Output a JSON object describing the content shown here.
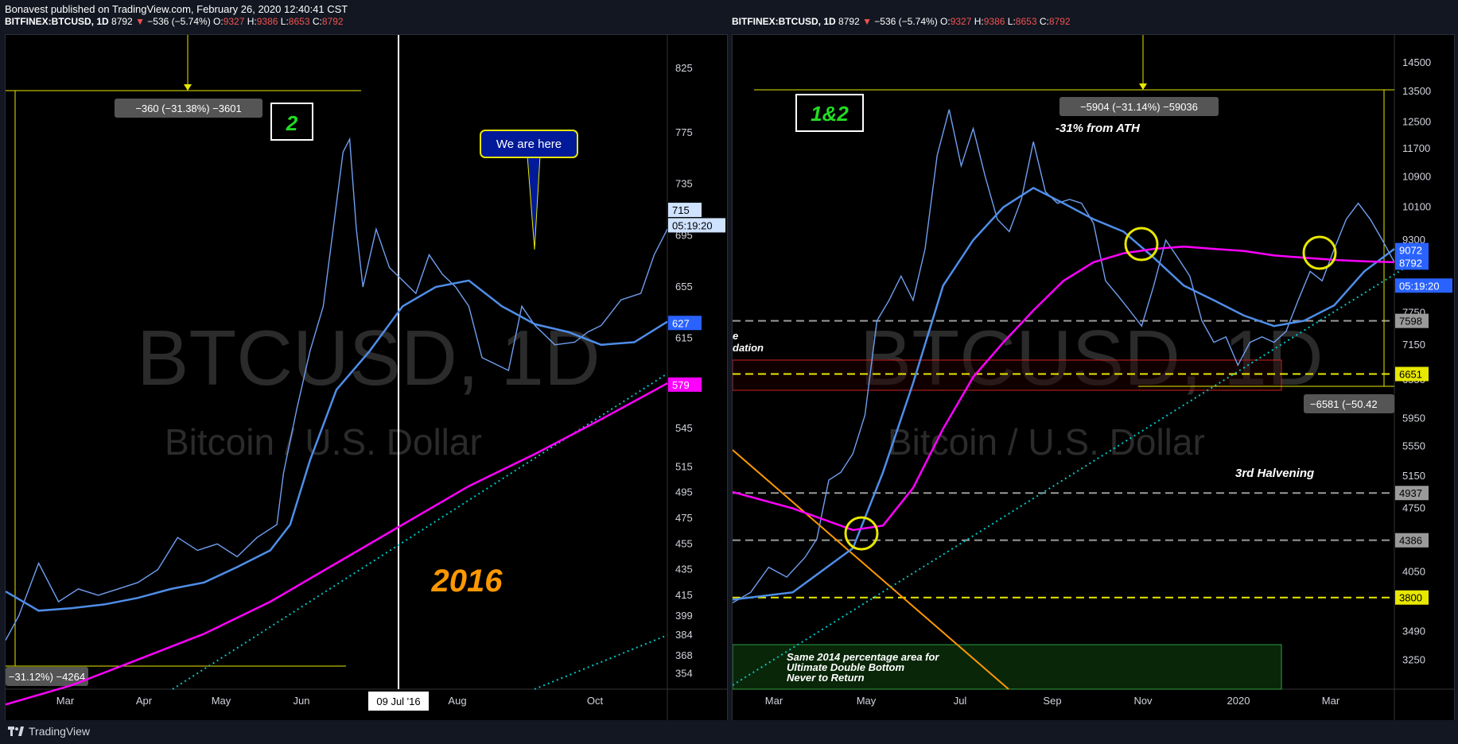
{
  "header": {
    "publisher_line": "Bonavest published on TradingView.com, February 26, 2020 12:40:41 CST"
  },
  "footer": {
    "brand": "TradingView"
  },
  "colors": {
    "sma_blue": "#4f8ee8",
    "ma_magenta": "#ff00ff",
    "yellow": "#e8e800",
    "cyan_dotted": "#00c8c8",
    "orange_line": "#ff9800",
    "price_line": "#6f9ff0",
    "red_zone": "#cc2222",
    "green_zone": "#2ea043"
  },
  "chart_data": [
    {
      "type": "line",
      "id": "left",
      "title": "BITFINEX:BTCUSD, 1D",
      "ohlc": {
        "last": "8792",
        "change": "−536 (−5.74%)",
        "O": "9327",
        "H": "9386",
        "L": "8653",
        "C": "8792"
      },
      "watermark": "BTCUSD, 1D",
      "watermark_sub": "Bitcoin / U.S. Dollar",
      "ylim": [
        350,
        840
      ],
      "x_labels": [
        "Mar",
        "Apr",
        "May",
        "Jun",
        "Aug",
        "Oct"
      ],
      "y_ticks": [
        "825",
        "775",
        "735",
        "695",
        "655",
        "615",
        "579",
        "545",
        "515",
        "495",
        "475",
        "455",
        "435",
        "415",
        "399",
        "384",
        "368",
        "354"
      ],
      "price_labels": [
        {
          "text": "715",
          "value": 715,
          "kind": "light"
        },
        {
          "text": "05:19:20",
          "value": 703,
          "kind": "light"
        },
        {
          "text": "627",
          "value": 627,
          "kind": "blue"
        },
        {
          "text": "579",
          "value": 579,
          "kind": "magenta"
        }
      ],
      "annotations": {
        "measure_top": "−360 (−31.38%) −3601",
        "measure_bottom": "−31.12%) −4264",
        "box_label": "2",
        "callout": "We are here",
        "year": "2016",
        "date_marker": "09 Jul '16"
      },
      "series": [
        {
          "name": "Price",
          "points": [
            [
              0,
              380
            ],
            [
              0.02,
              399
            ],
            [
              0.05,
              440
            ],
            [
              0.08,
              410
            ],
            [
              0.11,
              420
            ],
            [
              0.14,
              415
            ],
            [
              0.17,
              420
            ],
            [
              0.2,
              425
            ],
            [
              0.23,
              435
            ],
            [
              0.26,
              460
            ],
            [
              0.29,
              450
            ],
            [
              0.32,
              455
            ],
            [
              0.35,
              445
            ],
            [
              0.38,
              460
            ],
            [
              0.41,
              470
            ],
            [
              0.42,
              510
            ],
            [
              0.44,
              560
            ],
            [
              0.46,
              605
            ],
            [
              0.48,
              640
            ],
            [
              0.5,
              720
            ],
            [
              0.51,
              760
            ],
            [
              0.52,
              770
            ],
            [
              0.53,
              700
            ],
            [
              0.54,
              655
            ],
            [
              0.56,
              700
            ],
            [
              0.58,
              670
            ],
            [
              0.6,
              660
            ],
            [
              0.62,
              650
            ],
            [
              0.64,
              680
            ],
            [
              0.66,
              665
            ],
            [
              0.68,
              655
            ],
            [
              0.7,
              640
            ],
            [
              0.72,
              600
            ],
            [
              0.74,
              595
            ],
            [
              0.76,
              590
            ],
            [
              0.78,
              640
            ],
            [
              0.8,
              625
            ],
            [
              0.83,
              610
            ],
            [
              0.86,
              612
            ],
            [
              0.88,
              620
            ],
            [
              0.9,
              625
            ],
            [
              0.93,
              645
            ],
            [
              0.96,
              650
            ],
            [
              0.98,
              680
            ],
            [
              1.0,
              700
            ]
          ]
        },
        {
          "name": "SMA",
          "points": [
            [
              0,
              418
            ],
            [
              0.05,
              403
            ],
            [
              0.1,
              405
            ],
            [
              0.15,
              408
            ],
            [
              0.2,
              413
            ],
            [
              0.25,
              420
            ],
            [
              0.3,
              425
            ],
            [
              0.35,
              437
            ],
            [
              0.4,
              450
            ],
            [
              0.43,
              470
            ],
            [
              0.46,
              520
            ],
            [
              0.5,
              575
            ],
            [
              0.55,
              605
            ],
            [
              0.6,
              640
            ],
            [
              0.65,
              655
            ],
            [
              0.7,
              660
            ],
            [
              0.75,
              640
            ],
            [
              0.8,
              626
            ],
            [
              0.85,
              620
            ],
            [
              0.9,
              610
            ],
            [
              0.95,
              612
            ],
            [
              1.0,
              628
            ]
          ]
        },
        {
          "name": "MA200",
          "points": [
            [
              0,
              330
            ],
            [
              0.1,
              345
            ],
            [
              0.2,
              365
            ],
            [
              0.3,
              385
            ],
            [
              0.4,
              410
            ],
            [
              0.5,
              440
            ],
            [
              0.6,
              470
            ],
            [
              0.7,
              500
            ],
            [
              0.8,
              525
            ],
            [
              0.9,
              552
            ],
            [
              1.0,
              580
            ]
          ]
        }
      ]
    },
    {
      "type": "line",
      "id": "right",
      "title": "BITFINEX:BTCUSD, 1D",
      "ohlc": {
        "last": "8792",
        "change": "−536 (−5.74%)",
        "O": "9327",
        "H": "9386",
        "L": "8653",
        "C": "8792"
      },
      "watermark": "BTCUSD, 1D",
      "watermark_sub": "Bitcoin / U.S. Dollar",
      "ylim": [
        3100,
        15000
      ],
      "x_labels": [
        "Mar",
        "May",
        "Jul",
        "Sep",
        "Nov",
        "2020",
        "Mar"
      ],
      "y_ticks": [
        "14500",
        "13500",
        "12500",
        "11700",
        "10900",
        "10100",
        "9300",
        "7750",
        "7150",
        "6550",
        "5950",
        "5550",
        "5150",
        "4750",
        "4050",
        "3490",
        "3250"
      ],
      "price_labels": [
        {
          "text": "9072",
          "value": 9072,
          "kind": "blue"
        },
        {
          "text": "8792",
          "value": 8792,
          "kind": "blue"
        },
        {
          "text": "05:19:20",
          "value": 8300,
          "kind": "blue"
        },
        {
          "text": "7598",
          "value": 7598,
          "kind": "gray"
        },
        {
          "text": "6651",
          "value": 6651,
          "kind": "yellow"
        },
        {
          "text": "4937",
          "value": 4937,
          "kind": "gray"
        },
        {
          "text": "4386",
          "value": 4386,
          "kind": "gray"
        },
        {
          "text": "3800",
          "value": 3800,
          "kind": "yellow"
        }
      ],
      "levels": [
        {
          "value": 7598,
          "style": "gray-dash"
        },
        {
          "value": 6651,
          "style": "yellow-dash"
        },
        {
          "value": 4937,
          "style": "gray-dash"
        },
        {
          "value": 4386,
          "style": "gray-dash"
        },
        {
          "value": 3800,
          "style": "yellow-dash"
        }
      ],
      "annotations": {
        "measure_top": "−5904 (−31.14%) −59036",
        "measure_bottom": "−6581 (−50.42",
        "box_label": "1&2",
        "from_ath": "-31% from ATH",
        "halvening": "3rd Halvening",
        "green_zone_text": [
          "Same 2014 percentage area for",
          "Ultimate Double Bottom",
          "Never to Return"
        ],
        "left_cut_1": "e",
        "left_cut_2": "dation"
      },
      "series": [
        {
          "name": "Price",
          "points": [
            [
              0,
              3750
            ],
            [
              0.03,
              3850
            ],
            [
              0.06,
              4100
            ],
            [
              0.09,
              4000
            ],
            [
              0.12,
              4200
            ],
            [
              0.14,
              4400
            ],
            [
              0.16,
              5100
            ],
            [
              0.18,
              5200
            ],
            [
              0.2,
              5450
            ],
            [
              0.22,
              6000
            ],
            [
              0.24,
              7600
            ],
            [
              0.26,
              8000
            ],
            [
              0.28,
              8500
            ],
            [
              0.3,
              8000
            ],
            [
              0.32,
              9100
            ],
            [
              0.34,
              11500
            ],
            [
              0.36,
              12900
            ],
            [
              0.38,
              11200
            ],
            [
              0.4,
              12300
            ],
            [
              0.42,
              10900
            ],
            [
              0.44,
              9800
            ],
            [
              0.46,
              9500
            ],
            [
              0.48,
              10300
            ],
            [
              0.5,
              11900
            ],
            [
              0.52,
              10500
            ],
            [
              0.54,
              10200
            ],
            [
              0.56,
              10300
            ],
            [
              0.58,
              10200
            ],
            [
              0.6,
              9700
            ],
            [
              0.62,
              8400
            ],
            [
              0.64,
              8100
            ],
            [
              0.66,
              7800
            ],
            [
              0.68,
              7500
            ],
            [
              0.7,
              8300
            ],
            [
              0.72,
              9300
            ],
            [
              0.74,
              8900
            ],
            [
              0.76,
              8500
            ],
            [
              0.78,
              7600
            ],
            [
              0.8,
              7200
            ],
            [
              0.82,
              7300
            ],
            [
              0.84,
              6800
            ],
            [
              0.86,
              7200
            ],
            [
              0.88,
              7300
            ],
            [
              0.9,
              7200
            ],
            [
              0.92,
              7400
            ],
            [
              0.94,
              8000
            ],
            [
              0.96,
              8600
            ],
            [
              0.98,
              8400
            ],
            [
              1.0,
              9100
            ],
            [
              1.02,
              9800
            ],
            [
              1.04,
              10200
            ],
            [
              1.06,
              9800
            ],
            [
              1.08,
              9300
            ],
            [
              1.1,
              8800
            ]
          ]
        },
        {
          "name": "SMA",
          "points": [
            [
              0,
              3780
            ],
            [
              0.1,
              3850
            ],
            [
              0.2,
              4300
            ],
            [
              0.25,
              5200
            ],
            [
              0.3,
              6500
            ],
            [
              0.35,
              8300
            ],
            [
              0.4,
              9300
            ],
            [
              0.45,
              10100
            ],
            [
              0.5,
              10600
            ],
            [
              0.55,
              10200
            ],
            [
              0.6,
              9800
            ],
            [
              0.65,
              9500
            ],
            [
              0.7,
              8900
            ],
            [
              0.75,
              8300
            ],
            [
              0.8,
              8000
            ],
            [
              0.85,
              7700
            ],
            [
              0.9,
              7500
            ],
            [
              0.95,
              7600
            ],
            [
              1.0,
              7900
            ],
            [
              1.05,
              8600
            ],
            [
              1.1,
              9100
            ]
          ]
        },
        {
          "name": "MA200",
          "points": [
            [
              0,
              4950
            ],
            [
              0.1,
              4750
            ],
            [
              0.2,
              4500
            ],
            [
              0.25,
              4550
            ],
            [
              0.3,
              5000
            ],
            [
              0.35,
              5800
            ],
            [
              0.4,
              6600
            ],
            [
              0.45,
              7200
            ],
            [
              0.5,
              7800
            ],
            [
              0.55,
              8400
            ],
            [
              0.6,
              8800
            ],
            [
              0.65,
              9000
            ],
            [
              0.7,
              9100
            ],
            [
              0.75,
              9150
            ],
            [
              0.8,
              9100
            ],
            [
              0.85,
              9050
            ],
            [
              0.9,
              8950
            ],
            [
              0.95,
              8900
            ],
            [
              1.0,
              8850
            ],
            [
              1.05,
              8820
            ],
            [
              1.1,
              8800
            ]
          ]
        }
      ]
    }
  ]
}
